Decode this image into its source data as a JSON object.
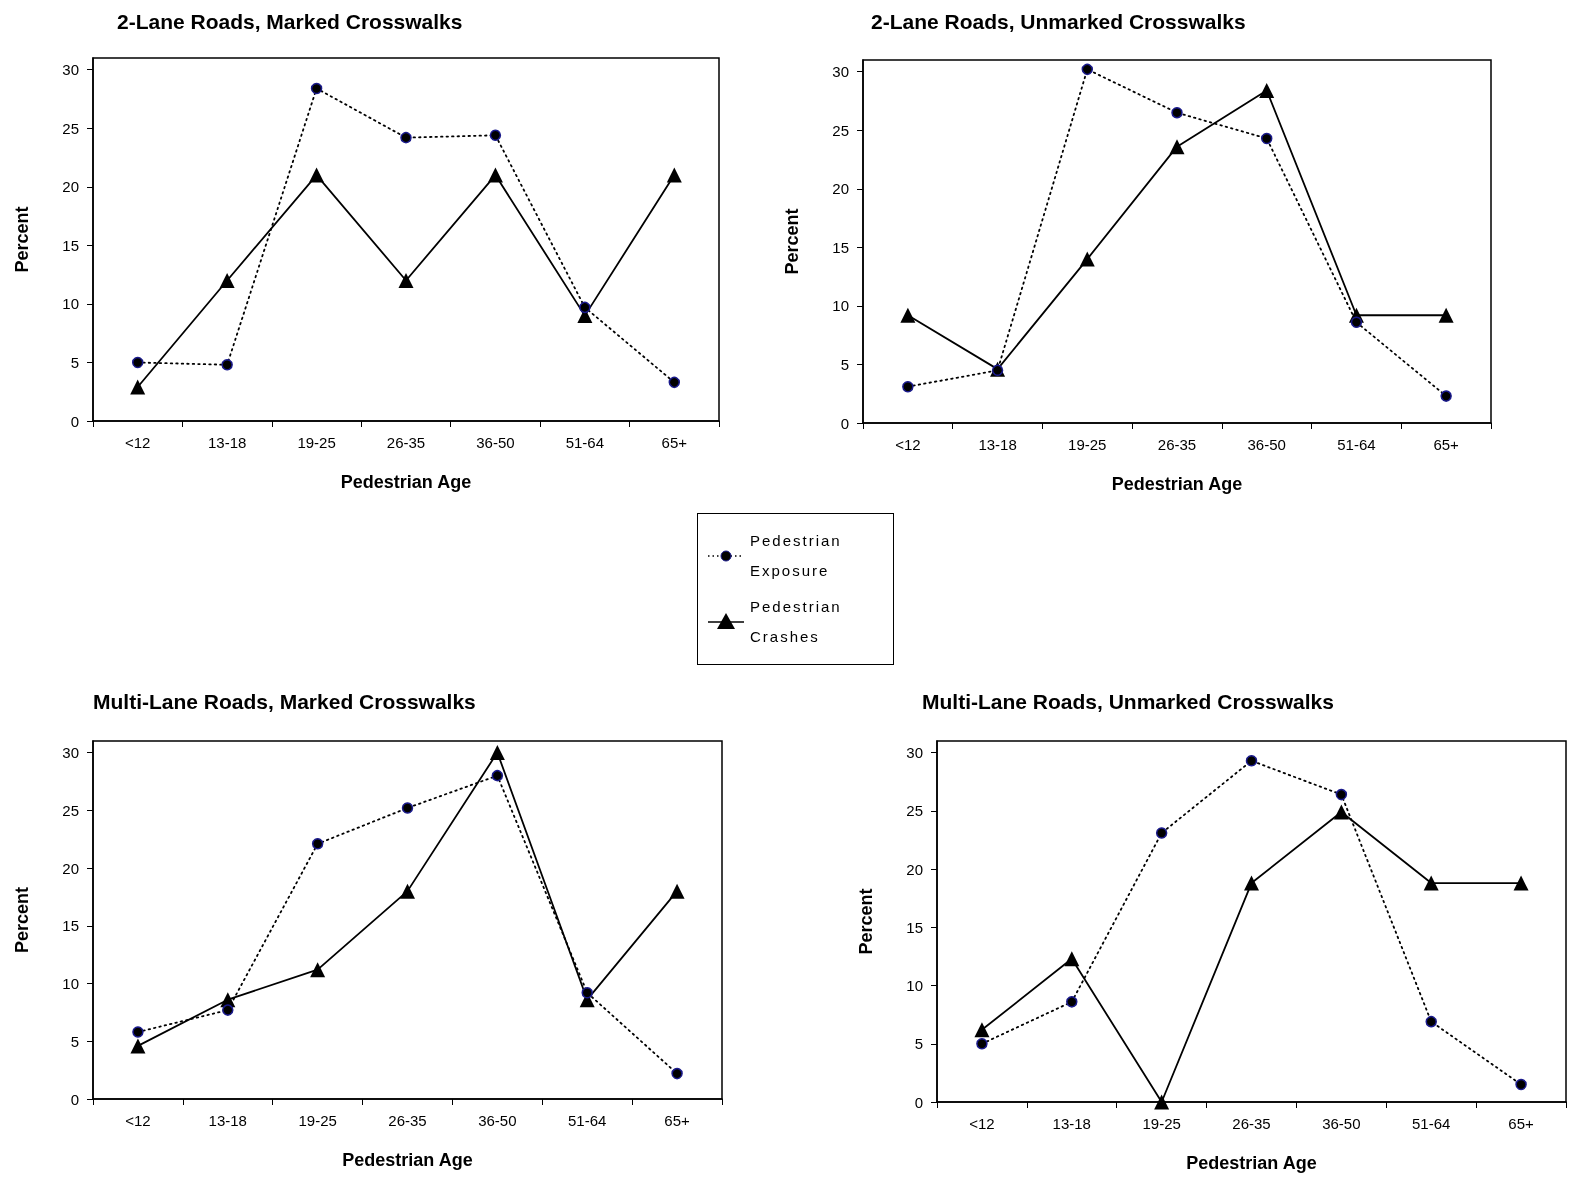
{
  "chart_data": [
    {
      "type": "line",
      "title": "2-Lane Roads, Marked Crosswalks",
      "xlabel": "Pedestrian Age",
      "ylabel": "Percent",
      "categories": [
        "<12",
        "13-18",
        "19-25",
        "26-35",
        "36-50",
        "51-64",
        "65+"
      ],
      "ylim": [
        0,
        31
      ],
      "yticks": [
        0,
        5,
        10,
        15,
        20,
        25,
        30
      ],
      "grid": false,
      "legend": "bottom right",
      "series": [
        {
          "name": "Pedestrian Exposure",
          "color": "#000000",
          "marker": "circle",
          "line_style": "dotted",
          "values": [
            5.0,
            4.8,
            28.4,
            24.2,
            24.4,
            9.7,
            3.3
          ]
        },
        {
          "name": "Pedestrian Crashes",
          "color": "#000000",
          "marker": "triangle",
          "line_style": "solid",
          "values": [
            2.9,
            12,
            21,
            12,
            21,
            9,
            21
          ]
        }
      ]
    },
    {
      "type": "line",
      "title": "2-Lane Roads, Unmarked Crosswalks",
      "xlabel": "Pedestrian Age",
      "ylabel": "Percent",
      "categories": [
        "<12",
        "13-18",
        "19-25",
        "26-35",
        "36-50",
        "51-64",
        "65+"
      ],
      "ylim": [
        0,
        31
      ],
      "yticks": [
        0,
        5,
        10,
        15,
        20,
        25,
        30
      ],
      "grid": false,
      "legend": false,
      "series": [
        {
          "color": "#000000",
          "marker": "circle",
          "line_style": "dotted",
          "values": [
            3.1,
            4.5,
            30.2,
            26.5,
            24.3,
            8.6,
            2.3
          ]
        },
        {
          "color": "#000000",
          "marker": "triangle",
          "line_style": "solid",
          "values": [
            9.2,
            4.6,
            14.0,
            23.6,
            28.4,
            9.2,
            9.2
          ]
        }
      ]
    },
    {
      "type": "line",
      "title": "Multi-Lane Roads, Marked Crosswalks",
      "xlabel": "Pedestrian Age",
      "ylabel": "Percent",
      "categories": [
        "<12",
        "13-18",
        "19-25",
        "26-35",
        "36-50",
        "51-64",
        "65+"
      ],
      "ylim": [
        0,
        31
      ],
      "yticks": [
        0,
        5,
        10,
        15,
        20,
        25,
        30
      ],
      "grid": false,
      "legend": false,
      "series": [
        {
          "color": "#000000",
          "marker": "circle",
          "line_style": "dotted",
          "values": [
            5.8,
            7.7,
            22.1,
            25.2,
            28.0,
            9.2,
            2.2
          ]
        },
        {
          "color": "#000000",
          "marker": "triangle",
          "line_style": "solid",
          "values": [
            4.6,
            8.6,
            11.2,
            18.0,
            30.0,
            8.6,
            18.0
          ]
        }
      ]
    },
    {
      "type": "line",
      "title": "Multi-Lane Roads, Unmarked Crosswalks",
      "xlabel": "Pedestrian Age",
      "ylabel": "Percent",
      "categories": [
        "<12",
        "13-18",
        "19-25",
        "26-35",
        "36-50",
        "51-64",
        "65+"
      ],
      "ylim": [
        0,
        31
      ],
      "yticks": [
        0,
        5,
        10,
        15,
        20,
        25,
        30
      ],
      "grid": false,
      "legend": false,
      "series": [
        {
          "color": "#000000",
          "marker": "circle",
          "line_style": "dotted",
          "values": [
            5.0,
            8.6,
            23.1,
            29.3,
            26.4,
            6.9,
            1.5
          ]
        },
        {
          "color": "#000000",
          "marker": "triangle",
          "line_style": "solid",
          "values": [
            6.2,
            12.3,
            0,
            18.8,
            24.9,
            18.8,
            18.8
          ]
        }
      ]
    }
  ]
}
